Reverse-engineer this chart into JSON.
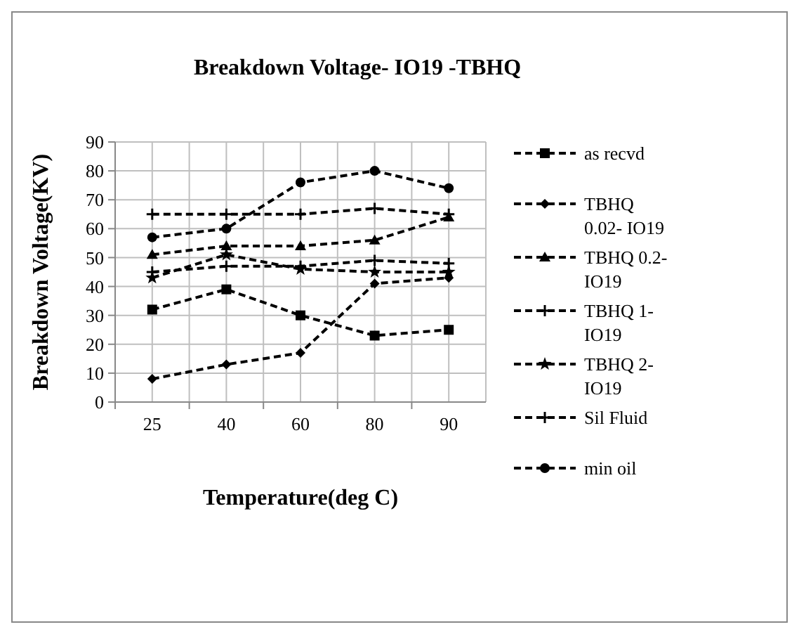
{
  "chart_data": {
    "type": "line",
    "title": "Breakdown Voltage- IO19 -TBHQ",
    "xlabel": "Temperature(deg C)",
    "ylabel": "Breakdown Voltage(KV)",
    "categories": [
      "25",
      "40",
      "60",
      "80",
      "90"
    ],
    "ylim": [
      0,
      90
    ],
    "yticks": [
      0,
      10,
      20,
      30,
      40,
      50,
      60,
      70,
      80,
      90
    ],
    "grid": true,
    "legend": "right",
    "line_style": "dashed",
    "series": [
      {
        "name": "as recvd",
        "color": "#000000",
        "marker": "square",
        "values": [
          32,
          39,
          30,
          23,
          25
        ]
      },
      {
        "name": "TBHQ 0.02- IO19",
        "color": "#000000",
        "marker": "diamond",
        "values": [
          8,
          13,
          17,
          41,
          43
        ]
      },
      {
        "name": "TBHQ 0.2- IO19",
        "color": "#000000",
        "marker": "triangle",
        "values": [
          51,
          54,
          54,
          56,
          64
        ]
      },
      {
        "name": "TBHQ 1- IO19",
        "color": "#000000",
        "marker": "cross",
        "values": [
          65,
          65,
          65,
          67,
          65
        ]
      },
      {
        "name": "TBHQ 2- IO19",
        "color": "#000000",
        "marker": "star",
        "values": [
          43,
          51,
          46,
          45,
          45
        ]
      },
      {
        "name": "Sil Fluid",
        "color": "#000000",
        "marker": "cross",
        "values": [
          45,
          47,
          47,
          49,
          48
        ]
      },
      {
        "name": "min oil",
        "color": "#000000",
        "marker": "circle",
        "values": [
          57,
          60,
          76,
          80,
          74
        ]
      }
    ]
  }
}
